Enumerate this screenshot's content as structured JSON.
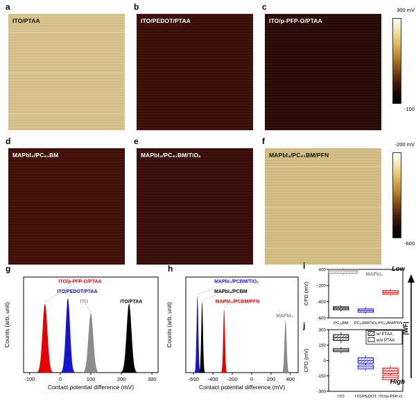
{
  "afm_panels": [
    {
      "letter": "a",
      "label": "ITO/PTAA",
      "color": "#d8c38c",
      "text_color": "#111111"
    },
    {
      "letter": "b",
      "label": "ITO/PEDOT/PTAA",
      "color": "#3c0e08",
      "text_color": "#ffffff"
    },
    {
      "letter": "c",
      "label": "ITO/p-PFP-O/PTAA",
      "color": "#2a0a05",
      "text_color": "#ffffff"
    },
    {
      "letter": "d",
      "label": "MAPbI₃/PC₆₁BM",
      "color": "#400f08",
      "text_color": "#ffffff"
    },
    {
      "letter": "e",
      "label": "MAPbI₃/PC₆₁BM/TiOₓ",
      "color": "#380d07",
      "text_color": "#ffffff"
    },
    {
      "letter": "f",
      "label": "MAPbI₃/PC₆₁BM/PFN",
      "color": "#d4be86",
      "text_color": "#111111"
    }
  ],
  "colorbars": [
    {
      "top_label": "300 mV",
      "bottom_label": "-100"
    },
    {
      "top_label": "-200 mV",
      "bottom_label": "-600"
    }
  ],
  "right_axis": {
    "low": "Low",
    "wf": "|WF|",
    "high": "High"
  },
  "chart_data": [
    {
      "letter": "g",
      "type": "histogram",
      "xlabel": "Contact potential difference (mV)",
      "ylabel": "Counts (arb. unit)",
      "xlim": [
        -120,
        320
      ],
      "xticks": [
        -100,
        0,
        100,
        200,
        300
      ],
      "series": [
        {
          "name": "ITO/p-PFP-O/PTAA",
          "color": "#e60000",
          "center": -50,
          "sigma": 8,
          "height": 0.72,
          "lx": 0.42,
          "ly": 0.06,
          "leader": true,
          "ldx": -12
        },
        {
          "name": "ITO/PEDOT/PTAA",
          "color": "#1515cc",
          "center": 25,
          "sigma": 7,
          "height": 0.78,
          "lx": 0.4,
          "ly": 0.165,
          "leader": true,
          "ldx": -10
        },
        {
          "name": "ITO",
          "color": "#8c8c8c",
          "center": 100,
          "sigma": 8,
          "height": 0.62,
          "lx": 0.45,
          "ly": 0.27,
          "leader": true,
          "ldx": 2
        },
        {
          "name": "ITO/PTAA",
          "color": "#000000",
          "center": 225,
          "sigma": 8,
          "height": 0.72,
          "lx": 0.8,
          "ly": 0.27,
          "leader": false
        }
      ]
    },
    {
      "letter": "h",
      "type": "histogram",
      "xlabel": "Contact potential difference (mV)",
      "ylabel": "Counts (arb. unit)",
      "xlim": [
        -680,
        480
      ],
      "xticks": [
        -600,
        -400,
        -200,
        0,
        200,
        400
      ],
      "series": [
        {
          "name": "MAPbI₃/PCBM/TiOₓ",
          "color": "#1515cc",
          "center": -560,
          "sigma": 9,
          "height": 0.8,
          "lx": 0.45,
          "ly": 0.06,
          "leader": true,
          "ldx": -20
        },
        {
          "name": "MAPbI₃/PCBM",
          "color": "#000000",
          "center": -512,
          "sigma": 9,
          "height": 0.74,
          "lx": 0.4,
          "ly": 0.165,
          "leader": true,
          "ldx": -18
        },
        {
          "name": "MAPbI₃/PCBM/PFN",
          "color": "#e60000",
          "center": -285,
          "sigma": 9,
          "height": 0.66,
          "lx": 0.46,
          "ly": 0.27,
          "leader": true,
          "ldx": -14
        },
        {
          "name": "MAPbI₃",
          "color": "#8c8c8c",
          "center": 350,
          "sigma": 11,
          "height": 0.55,
          "lx": 0.88,
          "ly": 0.42,
          "leader": false
        }
      ]
    },
    {
      "letter": "i",
      "type": "box",
      "ylabel": "CPD (mV)",
      "yticks": [
        400,
        -200,
        -400,
        -600
      ],
      "categories": [
        "PC₆₁BM",
        "PC₆₁BM/TiOₓ",
        "PC₆₁BM/PFN"
      ],
      "annotation": {
        "text": "MAPbI₃",
        "x": 0.5,
        "y": 0.13,
        "color": "#8c8c8c"
      },
      "boxes": [
        {
          "cat": 0,
          "lo": 250,
          "med": 350,
          "hi": 390,
          "color": "#8c8c8c",
          "hatch": true,
          "w": 1.15,
          "dx": 0.08
        },
        {
          "cat": 0,
          "lo": -500,
          "med": -480,
          "hi": -462,
          "color": "#000000",
          "hatch": true
        },
        {
          "cat": 1,
          "lo": -530,
          "med": -508,
          "hi": -488,
          "color": "#1515cc",
          "hatch": true
        },
        {
          "cat": 2,
          "lo": -308,
          "med": -286,
          "hi": -262,
          "color": "#e60000",
          "hatch": true
        }
      ]
    },
    {
      "letter": "j",
      "type": "box",
      "ylabel": "CPD (mV)",
      "yticks": [
        300,
        150,
        0,
        -150,
        -300
      ],
      "categories": [
        "ITO",
        "ITO/PEDOT",
        "ITO/p-PFP-O"
      ],
      "legend": [
        {
          "label": "w/ PTAA",
          "hatch": true
        },
        {
          "label": "w/o PTAA",
          "hatch": false
        }
      ],
      "boxes": [
        {
          "cat": 0,
          "lo": 196,
          "med": 224,
          "hi": 252,
          "color": "#000000",
          "hatch": true
        },
        {
          "cat": 0,
          "lo": 86,
          "med": 100,
          "hi": 116,
          "color": "#000000",
          "hatch": false
        },
        {
          "cat": 1,
          "lo": -28,
          "med": -2,
          "hi": 26,
          "color": "#1515cc",
          "hatch": true
        },
        {
          "cat": 1,
          "lo": -82,
          "med": -62,
          "hi": -44,
          "color": "#1515cc",
          "hatch": false
        },
        {
          "cat": 2,
          "lo": -128,
          "med": -102,
          "hi": -74,
          "color": "#e60000",
          "hatch": true
        },
        {
          "cat": 2,
          "lo": -186,
          "med": -164,
          "hi": -144,
          "color": "#e60000",
          "hatch": false
        }
      ]
    }
  ]
}
